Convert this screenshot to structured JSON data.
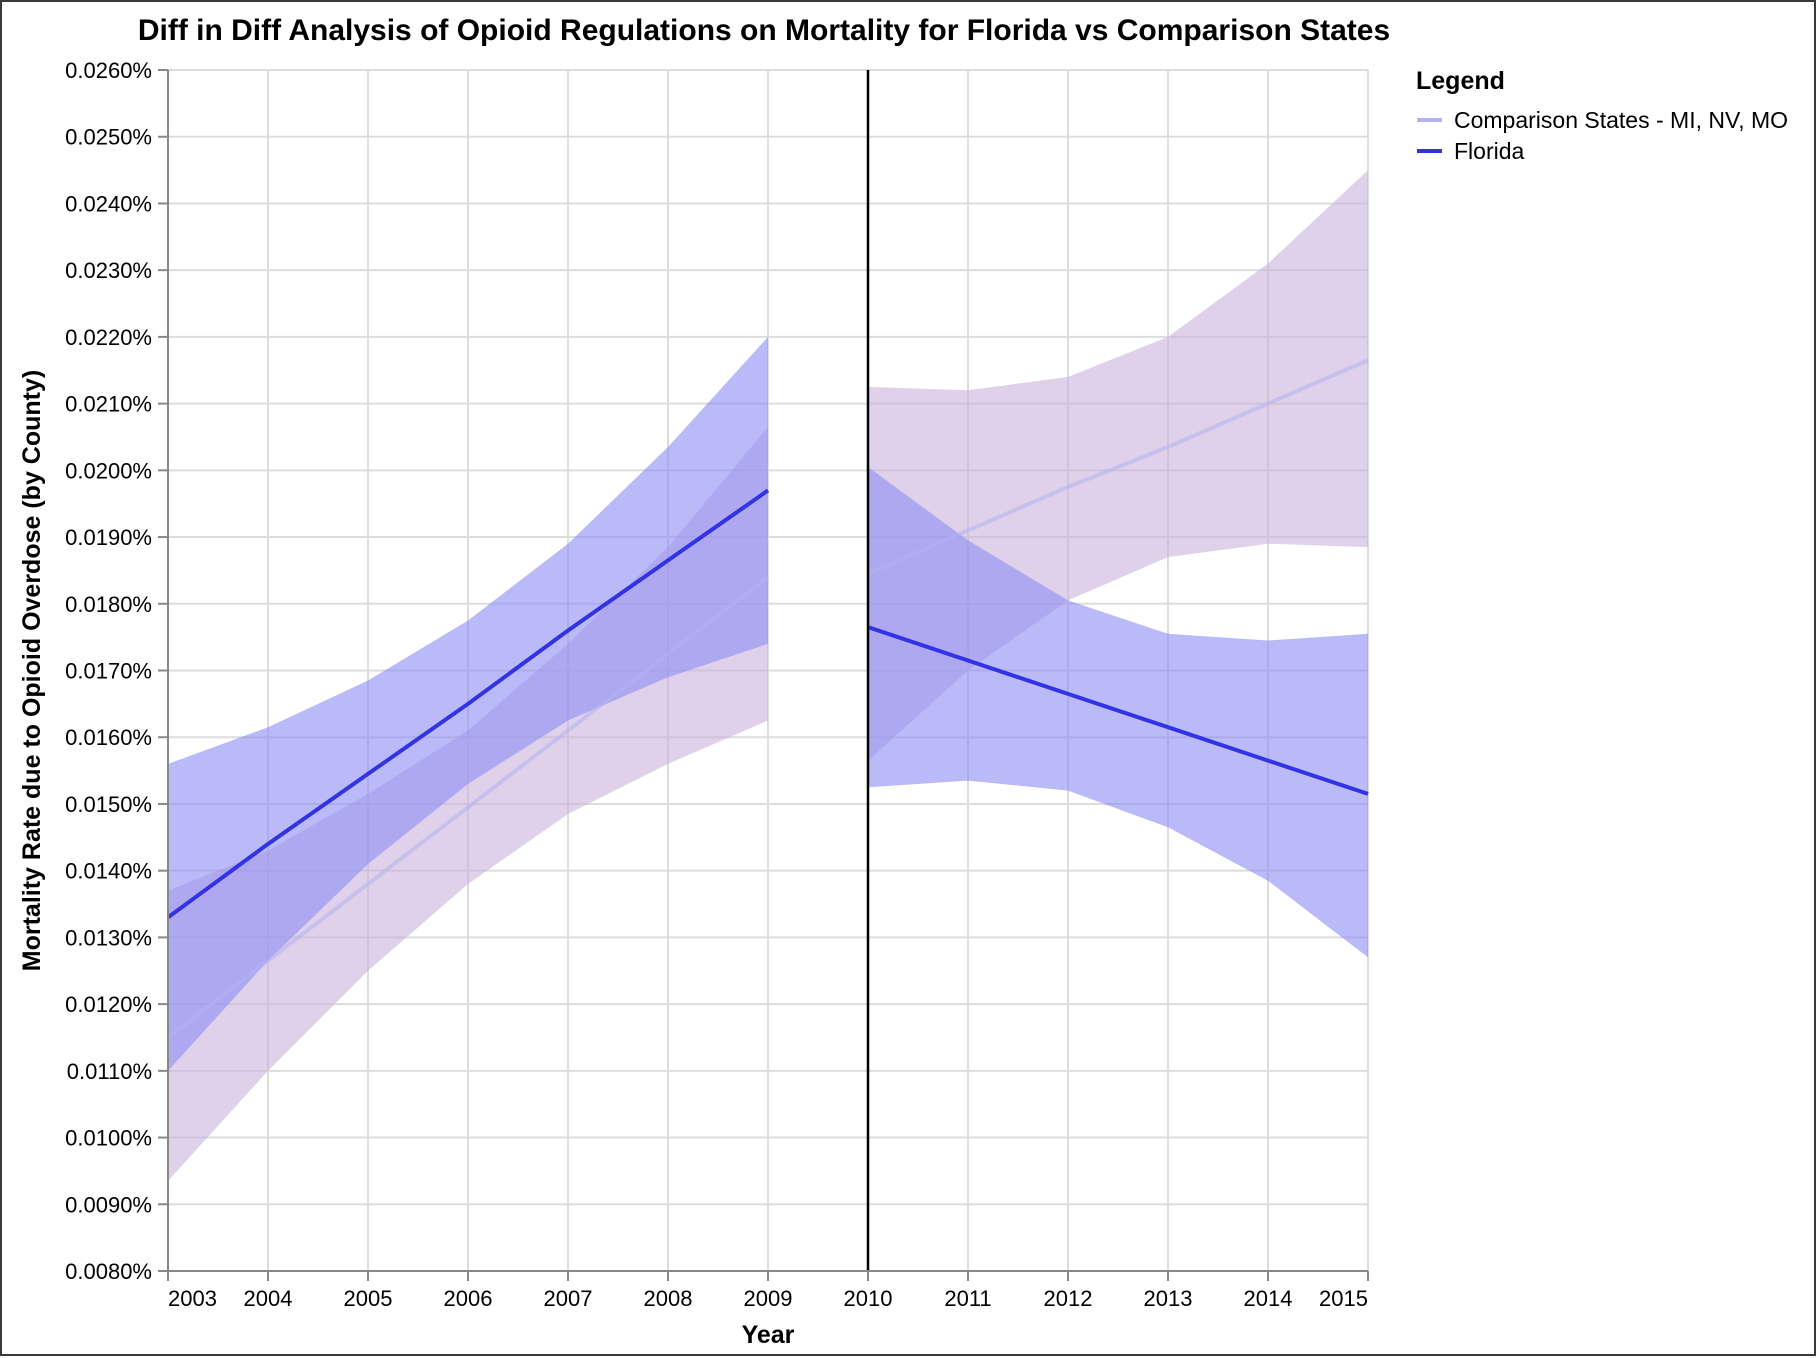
{
  "chart_data": {
    "type": "line",
    "title": "Diff in Diff Analysis of Opioid Regulations on Mortality for Florida vs Comparison States",
    "xlabel": "Year",
    "ylabel": "Mortality Rate due to Opioid Overdose (by County)",
    "xlim": [
      2003,
      2015
    ],
    "ylim": [
      0.008,
      0.026
    ],
    "x_ticks": [
      2003,
      2004,
      2005,
      2006,
      2007,
      2008,
      2009,
      2010,
      2011,
      2012,
      2013,
      2014,
      2015
    ],
    "y_ticks": [
      0.008,
      0.009,
      0.01,
      0.011,
      0.012,
      0.013,
      0.014,
      0.015,
      0.016,
      0.017,
      0.018,
      0.019,
      0.02,
      0.021,
      0.022,
      0.023,
      0.024,
      0.025,
      0.026
    ],
    "y_tick_labels": [
      "0.0080%",
      "0.0090%",
      "0.0100%",
      "0.0110%",
      "0.0120%",
      "0.0130%",
      "0.0140%",
      "0.0150%",
      "0.0160%",
      "0.0170%",
      "0.0180%",
      "0.0190%",
      "0.0200%",
      "0.0210%",
      "0.0220%",
      "0.0230%",
      "0.0240%",
      "0.0250%",
      "0.0260%"
    ],
    "policy_line_x": 2010,
    "grid": true,
    "legend": {
      "title": "Legend",
      "position": "top-right"
    },
    "series": [
      {
        "name": "Comparison States - MI, NV, MO",
        "color": "#b3b3f0",
        "band_color": "#c9b3db",
        "segments": [
          {
            "x": [
              2003,
              2004,
              2005,
              2006,
              2007,
              2008,
              2009
            ],
            "y": [
              0.0115,
              0.01265,
              0.0138,
              0.01495,
              0.0161,
              0.01725,
              0.0184
            ],
            "lower": [
              0.00935,
              0.011,
              0.0125,
              0.0138,
              0.01485,
              0.0156,
              0.01625
            ],
            "upper": [
              0.0137,
              0.0143,
              0.01515,
              0.0161,
              0.0174,
              0.01885,
              0.02065
            ]
          },
          {
            "x": [
              2010,
              2011,
              2012,
              2013,
              2014,
              2015
            ],
            "y": [
              0.01845,
              0.0191,
              0.01975,
              0.02035,
              0.021,
              0.02165
            ],
            "lower": [
              0.01565,
              0.017,
              0.01805,
              0.0187,
              0.0189,
              0.01885
            ],
            "upper": [
              0.02125,
              0.0212,
              0.0214,
              0.022,
              0.0231,
              0.0245
            ]
          }
        ]
      },
      {
        "name": "Florida",
        "color": "#3333e6",
        "band_color": "#8c8cf5",
        "segments": [
          {
            "x": [
              2003,
              2004,
              2005,
              2006,
              2007,
              2008,
              2009
            ],
            "y": [
              0.0133,
              0.0144,
              0.01545,
              0.0165,
              0.0176,
              0.01865,
              0.0197
            ],
            "lower": [
              0.011,
              0.01265,
              0.0141,
              0.0153,
              0.01625,
              0.0169,
              0.0174
            ],
            "upper": [
              0.0156,
              0.01615,
              0.01685,
              0.01775,
              0.0189,
              0.02035,
              0.022
            ]
          },
          {
            "x": [
              2010,
              2011,
              2012,
              2013,
              2014,
              2015
            ],
            "y": [
              0.01765,
              0.01715,
              0.01665,
              0.01615,
              0.01565,
              0.01515
            ],
            "lower": [
              0.01525,
              0.01535,
              0.0152,
              0.01465,
              0.01385,
              0.0127
            ],
            "upper": [
              0.02005,
              0.01895,
              0.01805,
              0.01755,
              0.01745,
              0.01755
            ]
          }
        ]
      }
    ]
  }
}
